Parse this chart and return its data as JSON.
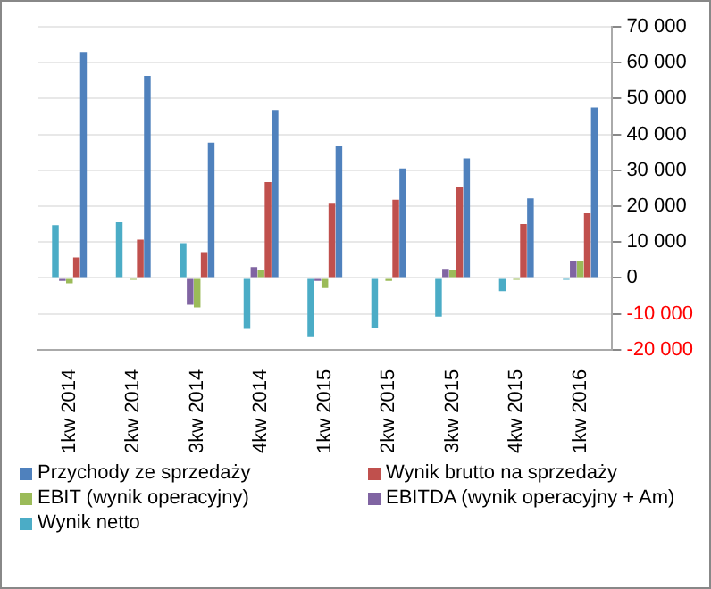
{
  "chart_data": {
    "type": "bar",
    "categories": [
      "1kw 2014",
      "2kw 2014",
      "3kw 2014",
      "4kw 2014",
      "1kw 2015",
      "2kw 2015",
      "3kw 2015",
      "4kw 2015",
      "1kw 2016"
    ],
    "series": [
      {
        "name": "Przychody ze sprzedaży",
        "color": "#4f81bd",
        "values": [
          63000,
          56300,
          37700,
          46800,
          36700,
          30500,
          33300,
          22200,
          47500
        ]
      },
      {
        "name": "Wynik brutto na sprzedaży",
        "color": "#c0504d",
        "values": [
          5700,
          10700,
          7200,
          26700,
          20700,
          21800,
          25200,
          15000,
          18000
        ]
      },
      {
        "name": "EBIT (wynik operacyjny)",
        "color": "#9bbb59",
        "values": [
          -1500,
          -500,
          -8200,
          2300,
          -2800,
          -800,
          2200,
          -500,
          4700
        ]
      },
      {
        "name": "EBITDA (wynik operacyjny + Am)",
        "color": "#8064a2",
        "values": [
          -800,
          -300,
          -7500,
          3000,
          -800,
          -300,
          2500,
          -300,
          4700
        ]
      },
      {
        "name": "Wynik netto",
        "color": "#4bacc6",
        "values": [
          14700,
          15500,
          9700,
          -14200,
          -16500,
          -14000,
          -10800,
          -3700,
          -500
        ]
      }
    ],
    "ylim": [
      -20000,
      70000
    ],
    "yticks": [
      {
        "value": -20000,
        "label": "-20 000"
      },
      {
        "value": -10000,
        "label": "-10 000"
      },
      0,
      {
        "value": 10000,
        "label": "10 000"
      },
      {
        "value": 20000,
        "label": "20 000"
      },
      {
        "value": 30000,
        "label": "30 000"
      },
      {
        "value": 40000,
        "label": "40 000"
      },
      {
        "value": 50000,
        "label": "50 000"
      },
      {
        "value": 60000,
        "label": "60 000"
      },
      {
        "value": 70000,
        "label": "70 000"
      }
    ],
    "grid": "y",
    "legend": "bottom"
  }
}
